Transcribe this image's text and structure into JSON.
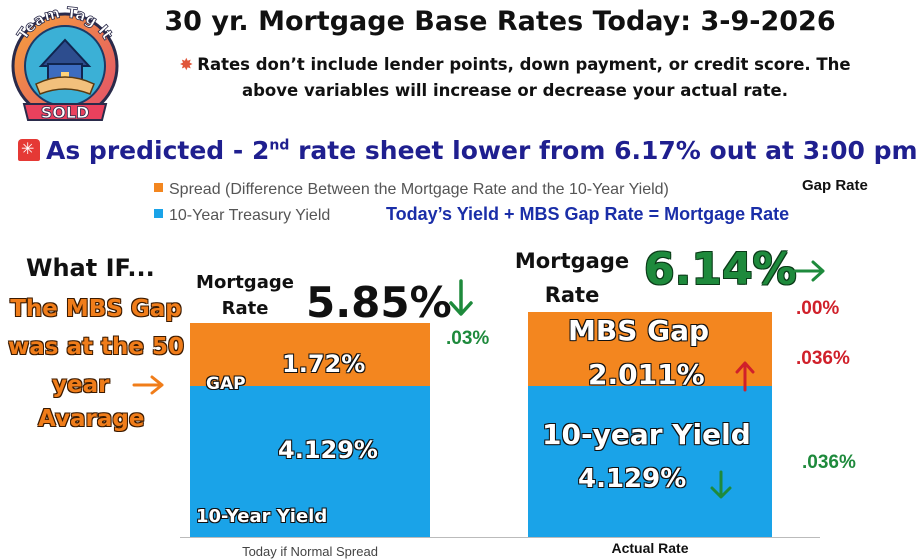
{
  "header": {
    "title": "30 yr. Mortgage Base Rates Today: 3-9-2026",
    "disclaimer": "Rates don’t include lender points, down payment, or credit score. The above variables will increase or decrease your actual rate.",
    "prediction_prefix": "As predicted - 2",
    "prediction_sup": "nd",
    "prediction_suffix": " rate sheet lower from 6.17% out at 3:00 pm"
  },
  "logo": {
    "top_text": "Team Tag It",
    "badge_text": "SOLD"
  },
  "legend": {
    "spread": "Spread (Difference Between the Mortgage Rate and the 10-Year Yield)",
    "treasury": "10-Year Treasury Yield",
    "gap_rate_note": "Gap Rate",
    "formula": "Today’s  Yield +  MBS Gap Rate = Mortgage Rate"
  },
  "whatif": {
    "heading": "What IF...",
    "line1": "The MBS Gap",
    "line2": "was at the 50",
    "line3": "year",
    "line4": "Avarage"
  },
  "left_panel": {
    "mortgage_label_1": "Mortgage",
    "mortgage_label_2": "Rate",
    "rate": "5.85%",
    "change": ".03%",
    "gap_label": "GAP",
    "gap_value": "1.72%",
    "yield_value": "4.129%",
    "yield_label": "10-Year Yield",
    "category": "Today if Normal Spread"
  },
  "right_panel": {
    "mortgage_label_1": "Mortgage",
    "mortgage_label_2": "Rate",
    "rate": "6.14%",
    "gap_change": ".00%",
    "mbs_gap_label": "MBS Gap",
    "mbs_gap_value": "2.011%",
    "mbs_gap_change": ".036%",
    "yield_label": "10-year Yield",
    "yield_value": "4.129%",
    "yield_change": ".036%",
    "category": "Actual Rate"
  },
  "colors": {
    "spread": "#f3861f",
    "treasury": "#1aa3e8",
    "up": "#d0202a",
    "down": "#1e8a3c",
    "title_blue": "#1f1f8f"
  },
  "icons": {
    "left_down_arrow": "arrow-down-icon",
    "right_arrow": "arrow-right-icon",
    "up_arrow": "arrow-up-icon"
  },
  "chart_data": {
    "type": "bar",
    "stacked": true,
    "categories": [
      "Today if Normal Spread",
      "Actual Rate"
    ],
    "series": [
      {
        "name": "10-Year Treasury Yield",
        "values": [
          4.129,
          4.129
        ]
      },
      {
        "name": "Spread (Difference Between the Mortgage Rate and the 10-Year Yield)",
        "values": [
          1.72,
          2.011
        ]
      }
    ],
    "totals": [
      5.85,
      6.14
    ],
    "ylim": [
      0,
      6.5
    ]
  }
}
